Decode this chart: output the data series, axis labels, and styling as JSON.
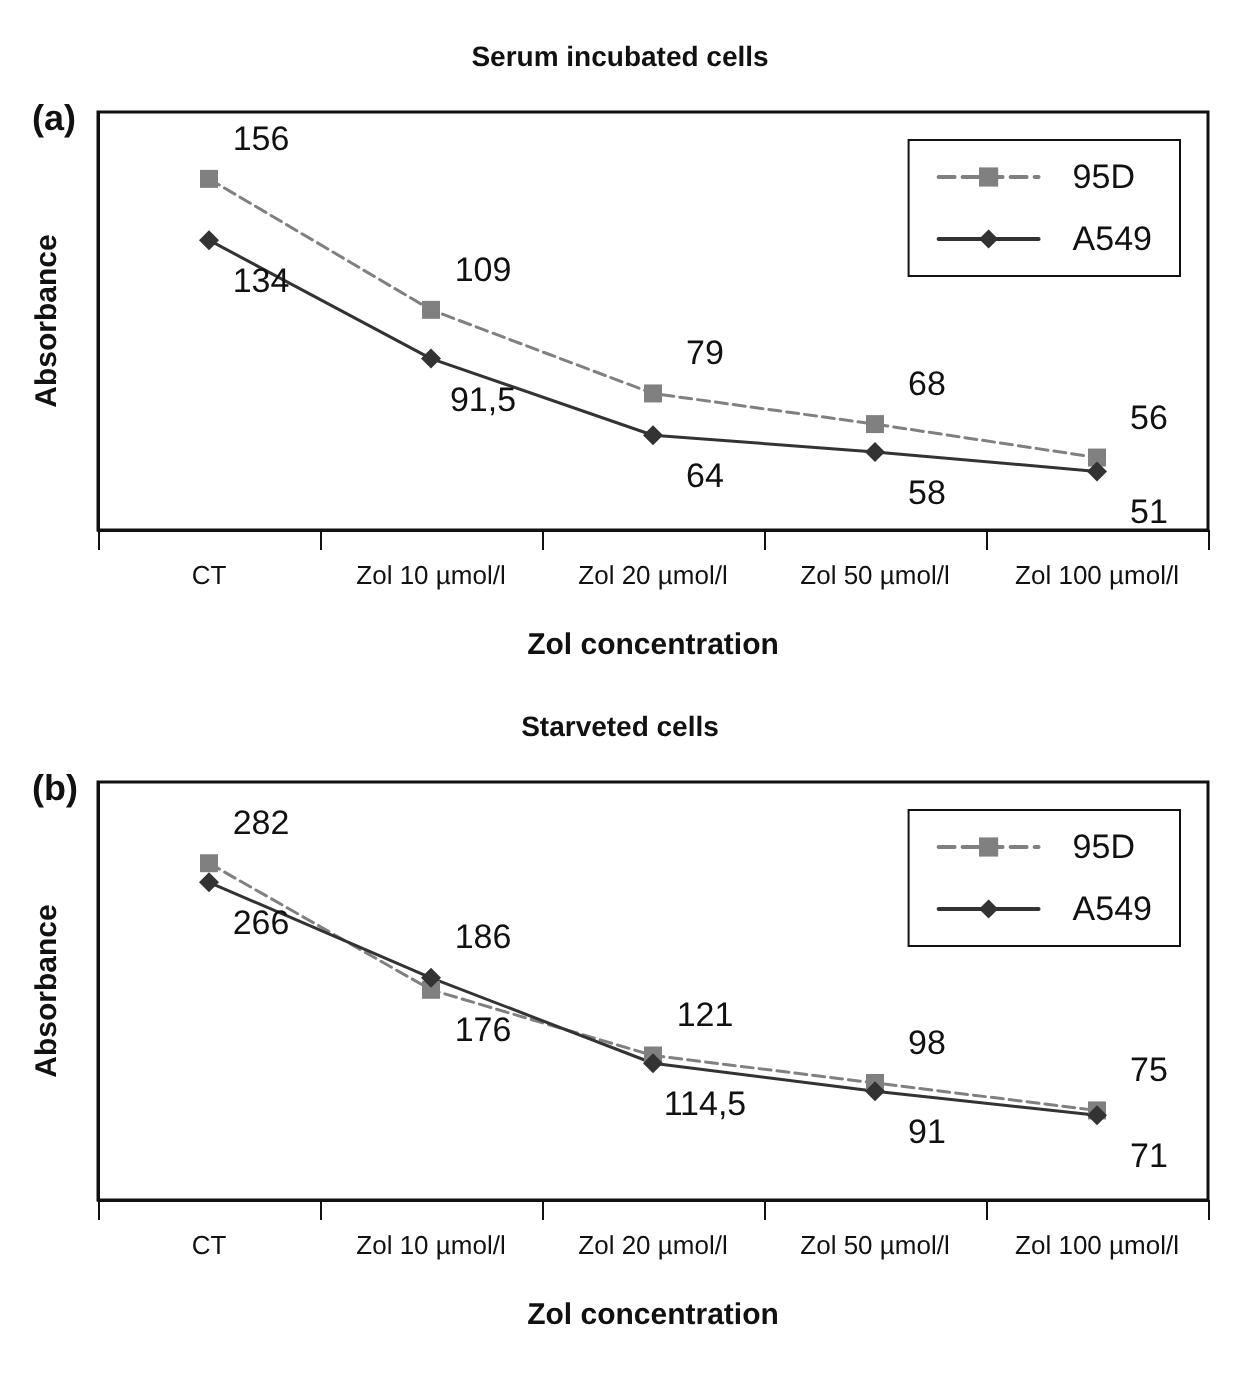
{
  "chart_data": [
    {
      "type": "line",
      "title": "Serum incubated cells",
      "xlabel": "Zol concentration",
      "ylabel": "Absorbance",
      "annotations": [
        "(a)"
      ],
      "legend": "top right",
      "tick_labels": "x",
      "categories": [
        "CT",
        "Zol 10 µmol/l",
        "Zol 20 µmol/l",
        "Zol 50 µmol/l",
        "Zol 100 µmol/l"
      ],
      "series": [
        {
          "name": "95D",
          "color": "#808080",
          "marker": "square",
          "line_style": "dashed",
          "values": [
            156,
            109,
            79,
            68,
            56
          ],
          "value_labels": [
            "156",
            "109",
            "79",
            "68",
            "56"
          ]
        },
        {
          "name": "A549",
          "color": "#333333",
          "marker": "diamond",
          "line_style": "solid",
          "values": [
            134,
            91.5,
            64,
            58,
            51
          ],
          "value_labels": [
            "134",
            "91,5",
            "64",
            "58",
            "51"
          ]
        }
      ]
    },
    {
      "type": "line",
      "title": "Starveted cells",
      "xlabel": "Zol concentration",
      "ylabel": "Absorbance",
      "annotations": [
        "(b)"
      ],
      "legend": "top right",
      "tick_labels": "x",
      "categories": [
        "CT",
        "Zol 10 µmol/l",
        "Zol 20 µmol/l",
        "Zol 50 µmol/l",
        "Zol 100 µmol/l"
      ],
      "series": [
        {
          "name": "95D",
          "color": "#808080",
          "marker": "square",
          "line_style": "dashed",
          "values": [
            282,
            176,
            121,
            98,
            75
          ],
          "value_labels": [
            "282",
            "176",
            "121",
            "98",
            "75"
          ]
        },
        {
          "name": "A549",
          "color": "#333333",
          "marker": "diamond",
          "line_style": "solid",
          "values": [
            266,
            186,
            114.5,
            91,
            71
          ],
          "value_labels": [
            "266",
            "186",
            "114,5",
            "91",
            "71"
          ]
        }
      ]
    }
  ]
}
